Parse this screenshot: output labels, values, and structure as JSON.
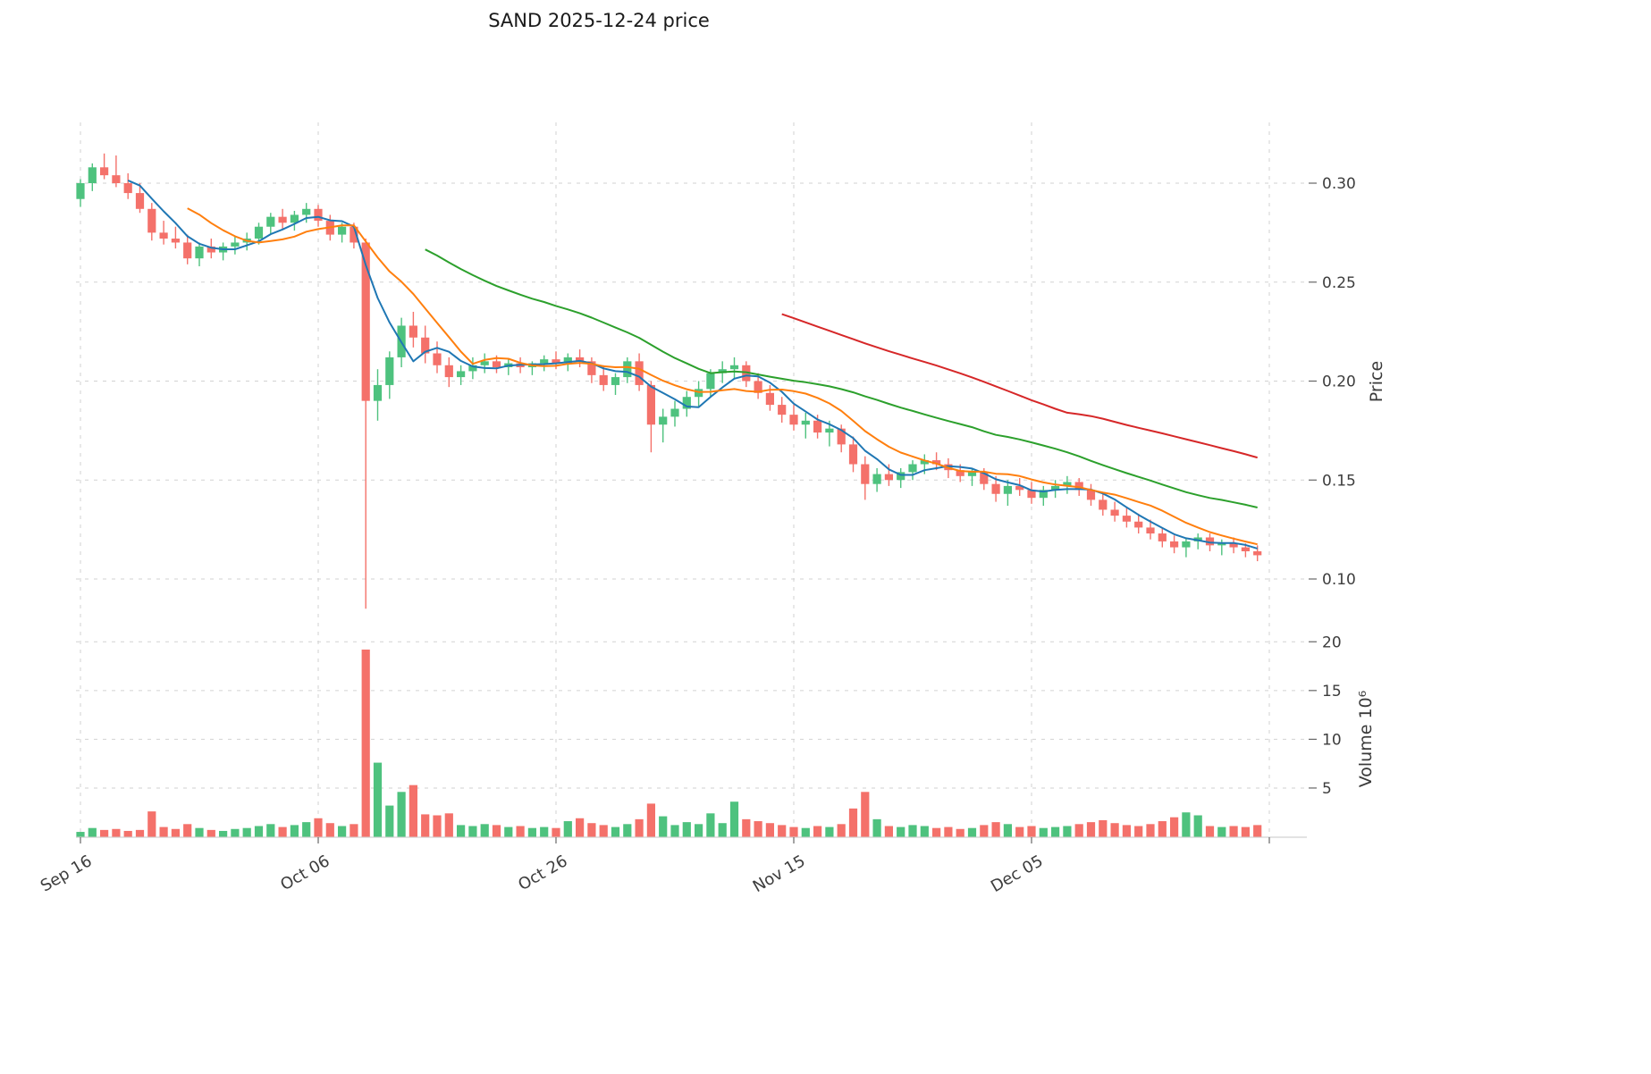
{
  "chart_data": {
    "type": "candlestick",
    "title": "SAND  2025-12-24  price",
    "ylabel_price": "Price",
    "ylabel_volume": "Volume  10⁶",
    "price_ticks": [
      0.1,
      0.15,
      0.2,
      0.25,
      0.3
    ],
    "volume_ticks": [
      5,
      10,
      15,
      20
    ],
    "price_ylim": [
      0.081,
      0.332
    ],
    "volume_ylim": [
      0,
      21.5
    ],
    "grid": true,
    "x_ticks": [
      {
        "index": 0,
        "label": "Sep 16"
      },
      {
        "index": 20,
        "label": "Oct 06"
      },
      {
        "index": 40,
        "label": "Oct 26"
      },
      {
        "index": 60,
        "label": "Nov 15"
      },
      {
        "index": 80,
        "label": "Dec 05"
      },
      {
        "index": 100,
        "label": ""
      }
    ],
    "moving_averages": [
      {
        "window": 5,
        "color": "#1f77b4"
      },
      {
        "window": 10,
        "color": "#ff7f0e"
      },
      {
        "window": 30,
        "color": "#2ca02c"
      },
      {
        "window": 60,
        "color": "#d62728"
      }
    ],
    "colors": {
      "up": "#4ec27e",
      "down": "#f4716a",
      "grid": "#d2d2d2",
      "tick_text": "#3d3d3d",
      "title_text": "#1a1a1a"
    },
    "ohlc": {
      "columns": [
        "date",
        "open",
        "high",
        "low",
        "close",
        "volume_millions"
      ],
      "rows": [
        [
          "2025-09-16",
          0.292,
          0.302,
          0.288,
          0.3,
          0.5
        ],
        [
          "2025-09-17",
          0.3,
          0.31,
          0.296,
          0.308,
          0.9
        ],
        [
          "2025-09-18",
          0.308,
          0.315,
          0.302,
          0.304,
          0.7
        ],
        [
          "2025-09-19",
          0.304,
          0.314,
          0.298,
          0.3,
          0.8
        ],
        [
          "2025-09-20",
          0.3,
          0.305,
          0.292,
          0.295,
          0.6
        ],
        [
          "2025-09-21",
          0.295,
          0.3,
          0.285,
          0.287,
          0.7
        ],
        [
          "2025-09-22",
          0.287,
          0.29,
          0.271,
          0.275,
          2.6
        ],
        [
          "2025-09-23",
          0.275,
          0.281,
          0.269,
          0.272,
          1.0
        ],
        [
          "2025-09-24",
          0.272,
          0.278,
          0.267,
          0.27,
          0.8
        ],
        [
          "2025-09-25",
          0.27,
          0.274,
          0.259,
          0.262,
          1.3
        ],
        [
          "2025-09-26",
          0.262,
          0.27,
          0.258,
          0.268,
          0.9
        ],
        [
          "2025-09-27",
          0.268,
          0.272,
          0.262,
          0.265,
          0.7
        ],
        [
          "2025-09-28",
          0.265,
          0.27,
          0.261,
          0.268,
          0.6
        ],
        [
          "2025-09-29",
          0.268,
          0.273,
          0.264,
          0.27,
          0.8
        ],
        [
          "2025-09-30",
          0.27,
          0.275,
          0.266,
          0.272,
          0.9
        ],
        [
          "2025-10-01",
          0.272,
          0.28,
          0.269,
          0.278,
          1.1
        ],
        [
          "2025-10-02",
          0.278,
          0.285,
          0.274,
          0.283,
          1.3
        ],
        [
          "2025-10-03",
          0.283,
          0.287,
          0.277,
          0.28,
          1.0
        ],
        [
          "2025-10-04",
          0.28,
          0.286,
          0.276,
          0.284,
          1.2
        ],
        [
          "2025-10-05",
          0.284,
          0.29,
          0.28,
          0.287,
          1.5
        ],
        [
          "2025-10-06",
          0.287,
          0.289,
          0.278,
          0.281,
          1.9
        ],
        [
          "2025-10-07",
          0.281,
          0.284,
          0.271,
          0.274,
          1.4
        ],
        [
          "2025-10-08",
          0.274,
          0.28,
          0.27,
          0.278,
          1.1
        ],
        [
          "2025-10-09",
          0.278,
          0.28,
          0.267,
          0.27,
          1.3
        ],
        [
          "2025-10-10",
          0.27,
          0.272,
          0.085,
          0.19,
          19.2
        ],
        [
          "2025-10-11",
          0.19,
          0.206,
          0.18,
          0.198,
          7.6
        ],
        [
          "2025-10-12",
          0.198,
          0.215,
          0.191,
          0.212,
          3.2
        ],
        [
          "2025-10-13",
          0.212,
          0.232,
          0.207,
          0.228,
          4.6
        ],
        [
          "2025-10-14",
          0.228,
          0.235,
          0.217,
          0.222,
          5.3
        ],
        [
          "2025-10-15",
          0.222,
          0.228,
          0.209,
          0.214,
          2.3
        ],
        [
          "2025-10-16",
          0.214,
          0.22,
          0.204,
          0.208,
          2.2
        ],
        [
          "2025-10-17",
          0.208,
          0.212,
          0.197,
          0.202,
          2.4
        ],
        [
          "2025-10-18",
          0.202,
          0.208,
          0.198,
          0.205,
          1.2
        ],
        [
          "2025-10-19",
          0.205,
          0.212,
          0.201,
          0.208,
          1.1
        ],
        [
          "2025-10-20",
          0.208,
          0.214,
          0.204,
          0.21,
          1.3
        ],
        [
          "2025-10-21",
          0.21,
          0.213,
          0.204,
          0.207,
          1.2
        ],
        [
          "2025-10-22",
          0.207,
          0.211,
          0.203,
          0.209,
          1.0
        ],
        [
          "2025-10-23",
          0.209,
          0.212,
          0.204,
          0.207,
          1.1
        ],
        [
          "2025-10-24",
          0.207,
          0.21,
          0.203,
          0.209,
          0.9
        ],
        [
          "2025-10-25",
          0.209,
          0.213,
          0.205,
          0.211,
          1.0
        ],
        [
          "2025-10-26",
          0.211,
          0.215,
          0.206,
          0.209,
          0.9
        ],
        [
          "2025-10-27",
          0.209,
          0.214,
          0.205,
          0.212,
          1.6
        ],
        [
          "2025-10-28",
          0.212,
          0.216,
          0.207,
          0.21,
          1.9
        ],
        [
          "2025-10-29",
          0.21,
          0.212,
          0.199,
          0.203,
          1.4
        ],
        [
          "2025-10-30",
          0.203,
          0.208,
          0.195,
          0.198,
          1.2
        ],
        [
          "2025-10-31",
          0.198,
          0.204,
          0.193,
          0.202,
          1.0
        ],
        [
          "2025-11-01",
          0.202,
          0.212,
          0.199,
          0.21,
          1.3
        ],
        [
          "2025-11-02",
          0.21,
          0.214,
          0.195,
          0.198,
          1.8
        ],
        [
          "2025-11-03",
          0.198,
          0.2,
          0.164,
          0.178,
          3.4
        ],
        [
          "2025-11-04",
          0.178,
          0.186,
          0.169,
          0.182,
          2.1
        ],
        [
          "2025-11-05",
          0.182,
          0.19,
          0.177,
          0.186,
          1.2
        ],
        [
          "2025-11-06",
          0.186,
          0.195,
          0.182,
          0.192,
          1.5
        ],
        [
          "2025-11-07",
          0.192,
          0.2,
          0.187,
          0.196,
          1.3
        ],
        [
          "2025-11-08",
          0.196,
          0.206,
          0.192,
          0.204,
          2.4
        ],
        [
          "2025-11-09",
          0.204,
          0.21,
          0.199,
          0.206,
          1.4
        ],
        [
          "2025-11-10",
          0.206,
          0.212,
          0.201,
          0.208,
          3.6
        ],
        [
          "2025-11-11",
          0.208,
          0.21,
          0.197,
          0.2,
          1.8
        ],
        [
          "2025-11-12",
          0.2,
          0.204,
          0.191,
          0.194,
          1.6
        ],
        [
          "2025-11-13",
          0.194,
          0.198,
          0.185,
          0.188,
          1.4
        ],
        [
          "2025-11-14",
          0.188,
          0.192,
          0.179,
          0.183,
          1.2
        ],
        [
          "2025-11-15",
          0.183,
          0.188,
          0.175,
          0.178,
          1.0
        ],
        [
          "2025-11-16",
          0.178,
          0.184,
          0.171,
          0.18,
          0.9
        ],
        [
          "2025-11-17",
          0.18,
          0.183,
          0.171,
          0.174,
          1.1
        ],
        [
          "2025-11-18",
          0.174,
          0.18,
          0.167,
          0.176,
          1.0
        ],
        [
          "2025-11-19",
          0.176,
          0.178,
          0.164,
          0.168,
          1.3
        ],
        [
          "2025-11-20",
          0.168,
          0.172,
          0.154,
          0.158,
          2.9
        ],
        [
          "2025-11-21",
          0.158,
          0.162,
          0.14,
          0.148,
          4.6
        ],
        [
          "2025-11-22",
          0.148,
          0.156,
          0.144,
          0.153,
          1.8
        ],
        [
          "2025-11-23",
          0.153,
          0.158,
          0.147,
          0.15,
          1.1
        ],
        [
          "2025-11-24",
          0.15,
          0.156,
          0.146,
          0.154,
          1.0
        ],
        [
          "2025-11-25",
          0.154,
          0.16,
          0.15,
          0.158,
          1.2
        ],
        [
          "2025-11-26",
          0.158,
          0.163,
          0.153,
          0.16,
          1.1
        ],
        [
          "2025-11-27",
          0.16,
          0.164,
          0.155,
          0.158,
          0.9
        ],
        [
          "2025-11-28",
          0.158,
          0.161,
          0.151,
          0.155,
          1.0
        ],
        [
          "2025-11-29",
          0.155,
          0.158,
          0.149,
          0.152,
          0.8
        ],
        [
          "2025-11-30",
          0.152,
          0.156,
          0.147,
          0.154,
          0.9
        ],
        [
          "2025-12-01",
          0.154,
          0.156,
          0.145,
          0.148,
          1.2
        ],
        [
          "2025-12-02",
          0.148,
          0.152,
          0.139,
          0.143,
          1.5
        ],
        [
          "2025-12-03",
          0.143,
          0.15,
          0.137,
          0.147,
          1.3
        ],
        [
          "2025-12-04",
          0.147,
          0.151,
          0.142,
          0.145,
          1.0
        ],
        [
          "2025-12-05",
          0.145,
          0.149,
          0.138,
          0.141,
          1.1
        ],
        [
          "2025-12-06",
          0.141,
          0.147,
          0.137,
          0.145,
          0.9
        ],
        [
          "2025-12-07",
          0.145,
          0.15,
          0.141,
          0.147,
          1.0
        ],
        [
          "2025-12-08",
          0.147,
          0.152,
          0.143,
          0.149,
          1.1
        ],
        [
          "2025-12-09",
          0.149,
          0.151,
          0.142,
          0.145,
          1.3
        ],
        [
          "2025-12-10",
          0.145,
          0.148,
          0.137,
          0.14,
          1.5
        ],
        [
          "2025-12-11",
          0.14,
          0.143,
          0.132,
          0.135,
          1.7
        ],
        [
          "2025-12-12",
          0.135,
          0.139,
          0.129,
          0.132,
          1.4
        ],
        [
          "2025-12-13",
          0.132,
          0.136,
          0.126,
          0.129,
          1.2
        ],
        [
          "2025-12-14",
          0.129,
          0.133,
          0.123,
          0.126,
          1.1
        ],
        [
          "2025-12-15",
          0.126,
          0.13,
          0.12,
          0.123,
          1.3
        ],
        [
          "2025-12-16",
          0.123,
          0.126,
          0.116,
          0.119,
          1.6
        ],
        [
          "2025-12-17",
          0.119,
          0.122,
          0.113,
          0.116,
          2.0
        ],
        [
          "2025-12-18",
          0.116,
          0.121,
          0.111,
          0.119,
          2.5
        ],
        [
          "2025-12-19",
          0.119,
          0.123,
          0.115,
          0.121,
          2.2
        ],
        [
          "2025-12-20",
          0.121,
          0.123,
          0.114,
          0.117,
          1.1
        ],
        [
          "2025-12-21",
          0.117,
          0.12,
          0.112,
          0.118,
          1.0
        ],
        [
          "2025-12-22",
          0.118,
          0.121,
          0.113,
          0.116,
          1.1
        ],
        [
          "2025-12-23",
          0.116,
          0.118,
          0.111,
          0.114,
          1.0
        ],
        [
          "2025-12-24",
          0.114,
          0.117,
          0.109,
          0.112,
          1.2
        ]
      ]
    }
  }
}
